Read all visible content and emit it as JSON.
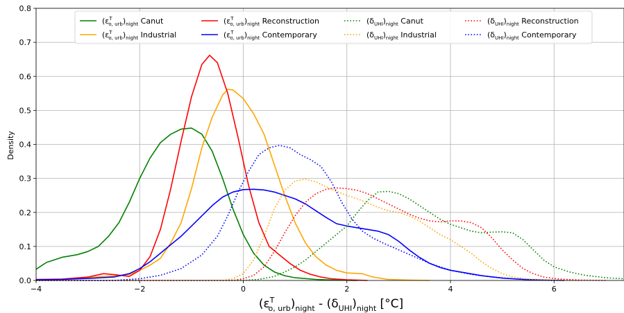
{
  "chart_data": {
    "type": "line",
    "xlabel_parts": {
      "eps": "(ε",
      "eps_sup": "T",
      "eps_sub": "o, urb",
      "close1": ")",
      "night1": "night",
      "dash": " - (δ",
      "uhi_sub": "UHI",
      "close2": ")",
      "night2": "night",
      "unit": " [°C]"
    },
    "ylabel": "Density",
    "xlim": [
      -4,
      7.35
    ],
    "ylim": [
      0,
      0.8
    ],
    "xticks": [
      -4,
      -2,
      0,
      2,
      4,
      6
    ],
    "yticks": [
      0.0,
      0.1,
      0.2,
      0.3,
      0.4,
      0.5,
      0.6,
      0.7,
      0.8
    ],
    "grid": true,
    "legend_position": "top",
    "series": [
      {
        "name": "Canut",
        "label_kind": "eps",
        "color": "#008000",
        "dash": "solid",
        "points": [
          [
            -4,
            0.033
          ],
          [
            -3.8,
            0.053
          ],
          [
            -3.5,
            0.068
          ],
          [
            -3.2,
            0.076
          ],
          [
            -3.0,
            0.085
          ],
          [
            -2.8,
            0.1
          ],
          [
            -2.6,
            0.13
          ],
          [
            -2.4,
            0.17
          ],
          [
            -2.2,
            0.23
          ],
          [
            -2.0,
            0.3
          ],
          [
            -1.8,
            0.36
          ],
          [
            -1.6,
            0.405
          ],
          [
            -1.4,
            0.43
          ],
          [
            -1.2,
            0.445
          ],
          [
            -1.0,
            0.448
          ],
          [
            -0.8,
            0.43
          ],
          [
            -0.6,
            0.38
          ],
          [
            -0.4,
            0.3
          ],
          [
            -0.2,
            0.21
          ],
          [
            0.0,
            0.135
          ],
          [
            0.2,
            0.08
          ],
          [
            0.4,
            0.045
          ],
          [
            0.6,
            0.025
          ],
          [
            0.8,
            0.014
          ],
          [
            1.0,
            0.008
          ],
          [
            1.4,
            0.003
          ],
          [
            1.8,
            0.001
          ],
          [
            2.2,
            0.0
          ]
        ]
      },
      {
        "name": "Industrial",
        "label_kind": "eps",
        "color": "#ffa500",
        "dash": "solid",
        "points": [
          [
            -4,
            0.002
          ],
          [
            -3.5,
            0.004
          ],
          [
            -3.0,
            0.008
          ],
          [
            -2.7,
            0.012
          ],
          [
            -2.5,
            0.013
          ],
          [
            -2.2,
            0.018
          ],
          [
            -2.0,
            0.03
          ],
          [
            -1.8,
            0.045
          ],
          [
            -1.6,
            0.065
          ],
          [
            -1.4,
            0.11
          ],
          [
            -1.2,
            0.17
          ],
          [
            -1.0,
            0.27
          ],
          [
            -0.8,
            0.39
          ],
          [
            -0.6,
            0.48
          ],
          [
            -0.4,
            0.545
          ],
          [
            -0.3,
            0.562
          ],
          [
            -0.2,
            0.56
          ],
          [
            0.0,
            0.535
          ],
          [
            0.2,
            0.49
          ],
          [
            0.4,
            0.43
          ],
          [
            0.6,
            0.34
          ],
          [
            0.8,
            0.25
          ],
          [
            1.0,
            0.17
          ],
          [
            1.2,
            0.11
          ],
          [
            1.4,
            0.07
          ],
          [
            1.6,
            0.045
          ],
          [
            1.8,
            0.03
          ],
          [
            2.0,
            0.022
          ],
          [
            2.3,
            0.02
          ],
          [
            2.5,
            0.01
          ],
          [
            2.8,
            0.003
          ],
          [
            3.2,
            0.001
          ],
          [
            3.6,
            0.0
          ]
        ]
      },
      {
        "name": "Reconstruction",
        "label_kind": "eps",
        "color": "#ff0000",
        "dash": "solid",
        "points": [
          [
            -4,
            0.003
          ],
          [
            -3.5,
            0.004
          ],
          [
            -3.0,
            0.01
          ],
          [
            -2.7,
            0.02
          ],
          [
            -2.5,
            0.017
          ],
          [
            -2.2,
            0.012
          ],
          [
            -2.0,
            0.03
          ],
          [
            -1.8,
            0.07
          ],
          [
            -1.6,
            0.15
          ],
          [
            -1.4,
            0.27
          ],
          [
            -1.2,
            0.41
          ],
          [
            -1.0,
            0.54
          ],
          [
            -0.8,
            0.635
          ],
          [
            -0.65,
            0.662
          ],
          [
            -0.5,
            0.64
          ],
          [
            -0.3,
            0.55
          ],
          [
            -0.1,
            0.42
          ],
          [
            0.1,
            0.28
          ],
          [
            0.3,
            0.17
          ],
          [
            0.5,
            0.1
          ],
          [
            0.7,
            0.075
          ],
          [
            0.9,
            0.05
          ],
          [
            1.1,
            0.03
          ],
          [
            1.3,
            0.018
          ],
          [
            1.5,
            0.01
          ],
          [
            1.7,
            0.005
          ],
          [
            2.0,
            0.002
          ],
          [
            2.4,
            0.0
          ]
        ]
      },
      {
        "name": "Contemporary",
        "label_kind": "eps",
        "color": "#0000ff",
        "dash": "solid",
        "points": [
          [
            -4,
            0.002
          ],
          [
            -3.5,
            0.003
          ],
          [
            -3.0,
            0.006
          ],
          [
            -2.5,
            0.01
          ],
          [
            -2.2,
            0.02
          ],
          [
            -2.0,
            0.035
          ],
          [
            -1.8,
            0.055
          ],
          [
            -1.6,
            0.08
          ],
          [
            -1.4,
            0.105
          ],
          [
            -1.2,
            0.13
          ],
          [
            -1.0,
            0.16
          ],
          [
            -0.8,
            0.19
          ],
          [
            -0.6,
            0.22
          ],
          [
            -0.4,
            0.245
          ],
          [
            -0.2,
            0.26
          ],
          [
            0.0,
            0.267
          ],
          [
            0.2,
            0.268
          ],
          [
            0.4,
            0.266
          ],
          [
            0.6,
            0.26
          ],
          [
            0.8,
            0.25
          ],
          [
            1.0,
            0.24
          ],
          [
            1.2,
            0.225
          ],
          [
            1.4,
            0.205
          ],
          [
            1.6,
            0.185
          ],
          [
            1.8,
            0.167
          ],
          [
            2.0,
            0.16
          ],
          [
            2.2,
            0.155
          ],
          [
            2.4,
            0.15
          ],
          [
            2.6,
            0.145
          ],
          [
            2.8,
            0.135
          ],
          [
            3.0,
            0.115
          ],
          [
            3.2,
            0.09
          ],
          [
            3.4,
            0.068
          ],
          [
            3.6,
            0.05
          ],
          [
            3.8,
            0.038
          ],
          [
            4.0,
            0.03
          ],
          [
            4.3,
            0.022
          ],
          [
            4.6,
            0.014
          ],
          [
            5.0,
            0.007
          ],
          [
            5.4,
            0.003
          ],
          [
            5.8,
            0.001
          ],
          [
            6.2,
            0.0
          ]
        ]
      },
      {
        "name": "Canut",
        "label_kind": "delta",
        "color": "#008000",
        "dash": "dotted",
        "points": [
          [
            -4,
            0.0
          ],
          [
            0.0,
            0.0
          ],
          [
            0.3,
            0.003
          ],
          [
            0.6,
            0.012
          ],
          [
            0.8,
            0.025
          ],
          [
            1.0,
            0.04
          ],
          [
            1.2,
            0.06
          ],
          [
            1.4,
            0.085
          ],
          [
            1.6,
            0.11
          ],
          [
            1.8,
            0.135
          ],
          [
            2.0,
            0.16
          ],
          [
            2.2,
            0.2
          ],
          [
            2.4,
            0.235
          ],
          [
            2.6,
            0.26
          ],
          [
            2.8,
            0.262
          ],
          [
            3.0,
            0.255
          ],
          [
            3.2,
            0.24
          ],
          [
            3.4,
            0.22
          ],
          [
            3.6,
            0.2
          ],
          [
            3.8,
            0.18
          ],
          [
            4.0,
            0.165
          ],
          [
            4.2,
            0.155
          ],
          [
            4.4,
            0.145
          ],
          [
            4.6,
            0.14
          ],
          [
            4.8,
            0.142
          ],
          [
            5.0,
            0.143
          ],
          [
            5.2,
            0.14
          ],
          [
            5.4,
            0.12
          ],
          [
            5.6,
            0.09
          ],
          [
            5.8,
            0.06
          ],
          [
            6.0,
            0.04
          ],
          [
            6.3,
            0.025
          ],
          [
            6.6,
            0.015
          ],
          [
            7.0,
            0.008
          ],
          [
            7.35,
            0.005
          ]
        ]
      },
      {
        "name": "Industrial",
        "label_kind": "delta",
        "color": "#ffa500",
        "dash": "dotted",
        "points": [
          [
            -4,
            0.0
          ],
          [
            -0.4,
            0.0
          ],
          [
            -0.2,
            0.005
          ],
          [
            0.0,
            0.02
          ],
          [
            0.2,
            0.06
          ],
          [
            0.4,
            0.13
          ],
          [
            0.6,
            0.21
          ],
          [
            0.8,
            0.265
          ],
          [
            1.0,
            0.292
          ],
          [
            1.2,
            0.298
          ],
          [
            1.4,
            0.29
          ],
          [
            1.6,
            0.275
          ],
          [
            1.8,
            0.262
          ],
          [
            2.0,
            0.25
          ],
          [
            2.2,
            0.24
          ],
          [
            2.4,
            0.228
          ],
          [
            2.6,
            0.215
          ],
          [
            2.8,
            0.205
          ],
          [
            3.0,
            0.2
          ],
          [
            3.2,
            0.19
          ],
          [
            3.4,
            0.175
          ],
          [
            3.6,
            0.155
          ],
          [
            3.8,
            0.135
          ],
          [
            4.0,
            0.12
          ],
          [
            4.2,
            0.1
          ],
          [
            4.4,
            0.08
          ],
          [
            4.6,
            0.055
          ],
          [
            4.8,
            0.035
          ],
          [
            5.0,
            0.02
          ],
          [
            5.2,
            0.01
          ],
          [
            5.5,
            0.004
          ],
          [
            6.0,
            0.001
          ],
          [
            6.5,
            0.0
          ]
        ]
      },
      {
        "name": "Reconstruction",
        "label_kind": "delta",
        "color": "#ff0000",
        "dash": "dotted",
        "points": [
          [
            -4,
            0.0
          ],
          [
            -0.2,
            0.0
          ],
          [
            0.0,
            0.005
          ],
          [
            0.2,
            0.015
          ],
          [
            0.4,
            0.04
          ],
          [
            0.6,
            0.085
          ],
          [
            0.8,
            0.14
          ],
          [
            1.0,
            0.19
          ],
          [
            1.2,
            0.23
          ],
          [
            1.4,
            0.255
          ],
          [
            1.6,
            0.268
          ],
          [
            1.8,
            0.272
          ],
          [
            2.0,
            0.27
          ],
          [
            2.2,
            0.265
          ],
          [
            2.4,
            0.255
          ],
          [
            2.6,
            0.24
          ],
          [
            2.8,
            0.225
          ],
          [
            3.0,
            0.21
          ],
          [
            3.2,
            0.195
          ],
          [
            3.4,
            0.183
          ],
          [
            3.6,
            0.175
          ],
          [
            3.8,
            0.172
          ],
          [
            4.0,
            0.175
          ],
          [
            4.2,
            0.175
          ],
          [
            4.4,
            0.17
          ],
          [
            4.6,
            0.155
          ],
          [
            4.8,
            0.125
          ],
          [
            5.0,
            0.09
          ],
          [
            5.2,
            0.06
          ],
          [
            5.4,
            0.035
          ],
          [
            5.6,
            0.02
          ],
          [
            5.8,
            0.01
          ],
          [
            6.1,
            0.004
          ],
          [
            6.5,
            0.001
          ],
          [
            7.0,
            0.0
          ]
        ]
      },
      {
        "name": "Contemporary",
        "label_kind": "delta",
        "color": "#0000ff",
        "dash": "dotted",
        "points": [
          [
            -4,
            0.0
          ],
          [
            -2.5,
            0.0
          ],
          [
            -2.0,
            0.005
          ],
          [
            -1.6,
            0.015
          ],
          [
            -1.2,
            0.035
          ],
          [
            -0.8,
            0.075
          ],
          [
            -0.5,
            0.13
          ],
          [
            -0.3,
            0.19
          ],
          [
            -0.1,
            0.26
          ],
          [
            0.1,
            0.32
          ],
          [
            0.3,
            0.37
          ],
          [
            0.5,
            0.39
          ],
          [
            0.7,
            0.397
          ],
          [
            0.9,
            0.39
          ],
          [
            1.1,
            0.37
          ],
          [
            1.3,
            0.355
          ],
          [
            1.5,
            0.335
          ],
          [
            1.7,
            0.29
          ],
          [
            1.9,
            0.23
          ],
          [
            2.1,
            0.18
          ],
          [
            2.3,
            0.145
          ],
          [
            2.5,
            0.125
          ],
          [
            2.7,
            0.11
          ],
          [
            3.0,
            0.09
          ],
          [
            3.3,
            0.07
          ],
          [
            3.6,
            0.05
          ],
          [
            4.0,
            0.03
          ],
          [
            4.4,
            0.018
          ],
          [
            4.8,
            0.01
          ],
          [
            5.2,
            0.005
          ],
          [
            5.6,
            0.002
          ],
          [
            6.0,
            0.0
          ]
        ]
      }
    ]
  }
}
